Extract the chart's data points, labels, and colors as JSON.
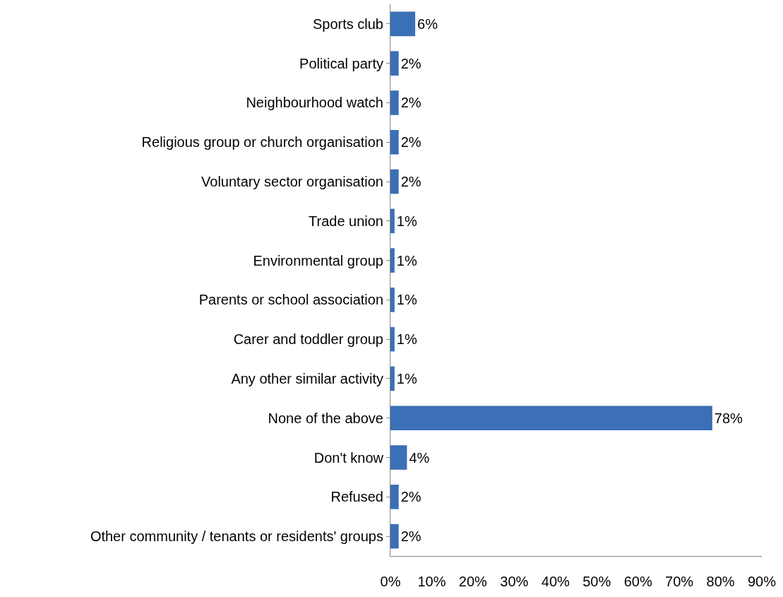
{
  "chart_data": {
    "type": "bar",
    "orientation": "horizontal",
    "categories": [
      "Sports club",
      "Political party",
      "Neighbourhood watch",
      "Religious group or church organisation",
      "Voluntary sector organisation",
      "Trade union",
      "Environmental group",
      "Parents or school association",
      "Carer and toddler group",
      "Any other similar activity",
      "None of the above",
      "Don't know",
      "Refused",
      "Other community / tenants or residents' groups"
    ],
    "values": [
      6,
      2,
      2,
      2,
      2,
      1,
      1,
      1,
      1,
      1,
      78,
      4,
      2,
      2
    ],
    "value_labels": [
      "6%",
      "2%",
      "2%",
      "2%",
      "2%",
      "1%",
      "1%",
      "1%",
      "1%",
      "1%",
      "78%",
      "4%",
      "2%",
      "2%"
    ],
    "color": "#3b6fb6",
    "xlim": [
      0,
      90
    ],
    "xticks": [
      {
        "value": 0,
        "label": "0%"
      },
      {
        "value": 10,
        "label": "10%"
      },
      {
        "value": 20,
        "label": "20%"
      },
      {
        "value": 30,
        "label": "30%"
      },
      {
        "value": 40,
        "label": "40%"
      },
      {
        "value": 50,
        "label": "50%"
      },
      {
        "value": 60,
        "label": "60%"
      },
      {
        "value": 70,
        "label": "70%"
      },
      {
        "value": 80,
        "label": "80%"
      },
      {
        "value": 90,
        "label": "90%"
      }
    ]
  }
}
